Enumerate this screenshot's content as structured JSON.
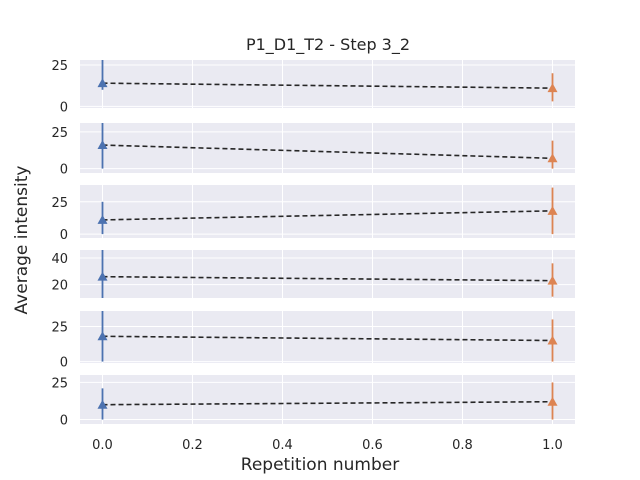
{
  "chart_data": {
    "type": "line",
    "title": "P1_D1_T2 - Step 3_2",
    "xlabel": "Repetition number",
    "ylabel": "Average intensity",
    "xlim": [
      -0.05,
      1.05
    ],
    "xticks": [
      0.0,
      0.2,
      0.4,
      0.6,
      0.8,
      1.0
    ],
    "xtick_labels": [
      "0.0",
      "0.2",
      "0.4",
      "0.6",
      "0.8",
      "1.0"
    ],
    "grid": true,
    "colors": {
      "first": "#4c72b0",
      "second": "#dd8452",
      "line": "#262626",
      "panel_bg": "#eaeaf2",
      "grid": "#ffffff"
    },
    "subplots": [
      {
        "ylim": [
          -1,
          28
        ],
        "yticks": [
          0,
          25
        ],
        "ytick_labels": [
          "0",
          "25"
        ],
        "points": [
          {
            "x": 0,
            "y": 14,
            "err_low": 10,
            "err_high": 28
          },
          {
            "x": 1,
            "y": 11,
            "err_low": 3,
            "err_high": 20
          }
        ]
      },
      {
        "ylim": [
          -3,
          31
        ],
        "yticks": [
          0,
          25
        ],
        "ytick_labels": [
          "0",
          "25"
        ],
        "points": [
          {
            "x": 0,
            "y": 16,
            "err_low": 0,
            "err_high": 31
          },
          {
            "x": 1,
            "y": 7,
            "err_low": 0,
            "err_high": 19
          }
        ]
      },
      {
        "ylim": [
          -3,
          38
        ],
        "yticks": [
          0,
          25
        ],
        "ytick_labels": [
          "0",
          "25"
        ],
        "points": [
          {
            "x": 0,
            "y": 11,
            "err_low": 0,
            "err_high": 25
          },
          {
            "x": 1,
            "y": 18,
            "err_low": 0,
            "err_high": 36
          }
        ]
      },
      {
        "ylim": [
          10,
          46
        ],
        "yticks": [
          20,
          40
        ],
        "ytick_labels": [
          "20",
          "40"
        ],
        "points": [
          {
            "x": 0,
            "y": 26,
            "err_low": 10,
            "err_high": 46
          },
          {
            "x": 1,
            "y": 23,
            "err_low": 11,
            "err_high": 36
          }
        ]
      },
      {
        "ylim": [
          -1,
          36
        ],
        "yticks": [
          0,
          25
        ],
        "ytick_labels": [
          "0",
          "25"
        ],
        "points": [
          {
            "x": 0,
            "y": 18,
            "err_low": 0,
            "err_high": 36
          },
          {
            "x": 1,
            "y": 15,
            "err_low": 0,
            "err_high": 30
          }
        ]
      },
      {
        "ylim": [
          -3,
          30
        ],
        "yticks": [
          0,
          25
        ],
        "ytick_labels": [
          "0",
          "25"
        ],
        "points": [
          {
            "x": 0,
            "y": 10,
            "err_low": 0,
            "err_high": 21
          },
          {
            "x": 1,
            "y": 12,
            "err_low": 0,
            "err_high": 25
          }
        ]
      }
    ]
  }
}
